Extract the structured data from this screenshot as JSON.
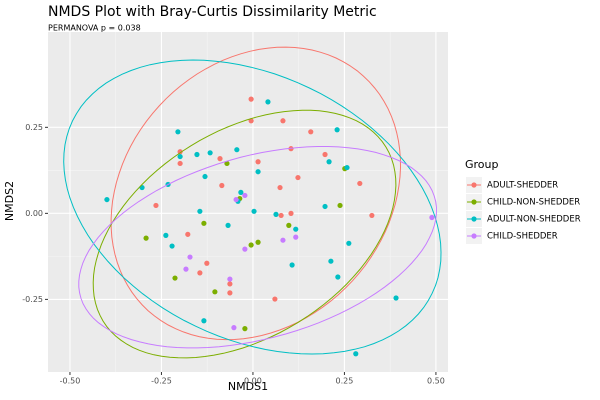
{
  "chart_data": {
    "type": "scatter",
    "title": "NMDS Plot with Bray-Curtis Dissimilarity Metric",
    "subtitle": "PERMANOVA p = 0.038",
    "x_label": "NMDS1",
    "y_label": "NMDS2",
    "legend_title": "Group",
    "legend": "right",
    "grid": true,
    "ellipses": true,
    "xlim": [
      -0.56,
      0.533
    ],
    "ylim": [
      -0.461,
      0.527
    ],
    "xticks": [
      {
        "value": -0.5,
        "label": "-0.50"
      },
      {
        "value": -0.25,
        "label": "-0.25"
      },
      {
        "value": 0,
        "label": "0.00"
      },
      {
        "value": 0.25,
        "label": "0.25"
      },
      {
        "value": 0.5,
        "label": "0.50"
      }
    ],
    "yticks": [
      {
        "value": -0.25,
        "label": "-0.25"
      },
      {
        "value": 0,
        "label": "0.00"
      },
      {
        "value": 0.25,
        "label": "0.25"
      }
    ],
    "series": [
      {
        "name": "ADULT-SHEDDER",
        "color": "#F8766D",
        "x": [
          -0.005,
          -0.005,
          0.082,
          0.158,
          -0.199,
          -0.199,
          0.014,
          0.104,
          0.197,
          -0.09,
          0.292,
          0.123,
          0.074,
          -0.085,
          -0.265,
          0.104,
          0.077,
          0.325,
          -0.178,
          -0.126,
          -0.063,
          -0.063,
          0.06,
          -0.145
        ],
        "values": [
          0.332,
          0.269,
          0.269,
          0.237,
          0.179,
          0.145,
          0.15,
          0.188,
          0.171,
          0.159,
          0.087,
          0.104,
          0.075,
          0.081,
          0.023,
          0,
          -0.006,
          -0.006,
          -0.061,
          -0.145,
          -0.205,
          -0.231,
          -0.249,
          -0.173
        ]
      },
      {
        "name": "CHILD-NON-SHEDDER",
        "color": "#7CAE00",
        "x": [
          -0.071,
          0.251,
          -0.036,
          -0.134,
          0.238,
          0.098,
          -0.292,
          0.014,
          -0.005,
          -0.213,
          -0.104,
          -0.022
        ],
        "values": [
          0.145,
          0.13,
          0.043,
          -0.029,
          0.023,
          -0.035,
          -0.072,
          -0.084,
          -0.092,
          -0.188,
          -0.228,
          -0.335
        ]
      },
      {
        "name": "ADULT-NON-SHEDDER",
        "color": "#00BFC4",
        "x": [
          0.041,
          0.23,
          -0.205,
          -0.117,
          -0.199,
          -0.153,
          -0.044,
          0.208,
          0.257,
          0.014,
          -0.303,
          -0.232,
          -0.131,
          -0.033,
          -0.041,
          -0.399,
          0.063,
          -0.145,
          0.003,
          0.197,
          -0.068,
          -0.238,
          -0.221,
          0.117,
          0.262,
          0.107,
          0.213,
          0.232,
          0.391,
          -0.134,
          0.281
        ],
        "values": [
          0.324,
          0.243,
          0.237,
          0.176,
          0.165,
          0.171,
          0.185,
          0.15,
          0.133,
          0.121,
          0.075,
          0.084,
          0.107,
          0.061,
          0.035,
          0.04,
          -0.003,
          0.006,
          0.006,
          0.02,
          -0.035,
          -0.064,
          -0.095,
          -0.046,
          -0.087,
          -0.15,
          -0.139,
          -0.185,
          -0.246,
          -0.312,
          -0.408
        ]
      },
      {
        "name": "CHILD-SHEDDER",
        "color": "#C77CFF",
        "x": [
          0.489,
          -0.046,
          -0.022,
          0.082,
          0.117,
          -0.022,
          -0.172,
          -0.183,
          -0.063,
          -0.052
        ],
        "values": [
          -0.012,
          0.04,
          0.052,
          -0.078,
          -0.069,
          -0.104,
          -0.127,
          -0.162,
          -0.191,
          -0.332
        ]
      }
    ]
  }
}
